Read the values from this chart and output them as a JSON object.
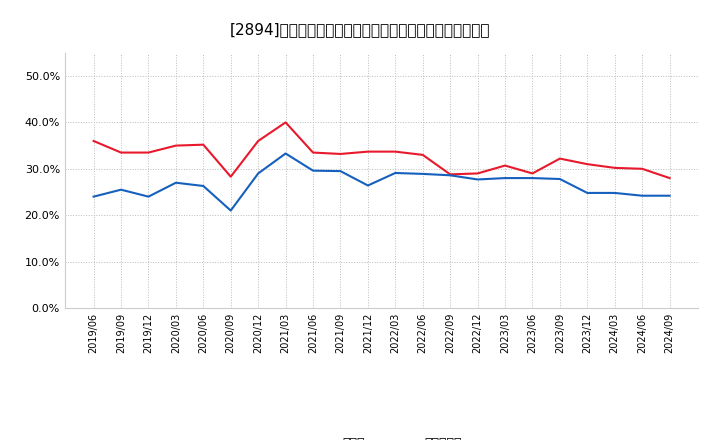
{
  "title": "[2894]　現颅金、有利子負債の総資産に対する比率の推移",
  "x_labels": [
    "2019/06",
    "2019/09",
    "2019/12",
    "2020/03",
    "2020/06",
    "2020/09",
    "2020/12",
    "2021/03",
    "2021/06",
    "2021/09",
    "2021/12",
    "2022/03",
    "2022/06",
    "2022/09",
    "2022/12",
    "2023/03",
    "2023/06",
    "2023/09",
    "2023/12",
    "2024/03",
    "2024/06",
    "2024/09"
  ],
  "cash": [
    0.36,
    0.335,
    0.335,
    0.35,
    0.352,
    0.283,
    0.36,
    0.4,
    0.335,
    0.332,
    0.337,
    0.337,
    0.33,
    0.288,
    0.29,
    0.307,
    0.29,
    0.322,
    0.31,
    0.302,
    0.3,
    0.28
  ],
  "interest_bearing_debt": [
    0.24,
    0.255,
    0.24,
    0.27,
    0.263,
    0.21,
    0.29,
    0.333,
    0.296,
    0.295,
    0.264,
    0.291,
    0.289,
    0.286,
    0.277,
    0.28,
    0.28,
    0.278,
    0.248,
    0.248,
    0.242,
    0.242
  ],
  "cash_color": "#e8192c",
  "debt_color": "#1560bd",
  "legend_cash": "現颅金",
  "legend_debt": "有利子負債",
  "ylim": [
    0.0,
    0.55
  ],
  "yticks": [
    0.0,
    0.1,
    0.2,
    0.3,
    0.4,
    0.5
  ],
  "background_color": "#ffffff",
  "grid_color": "#aaaaaa",
  "line_width": 1.5,
  "title_fontsize": 11
}
